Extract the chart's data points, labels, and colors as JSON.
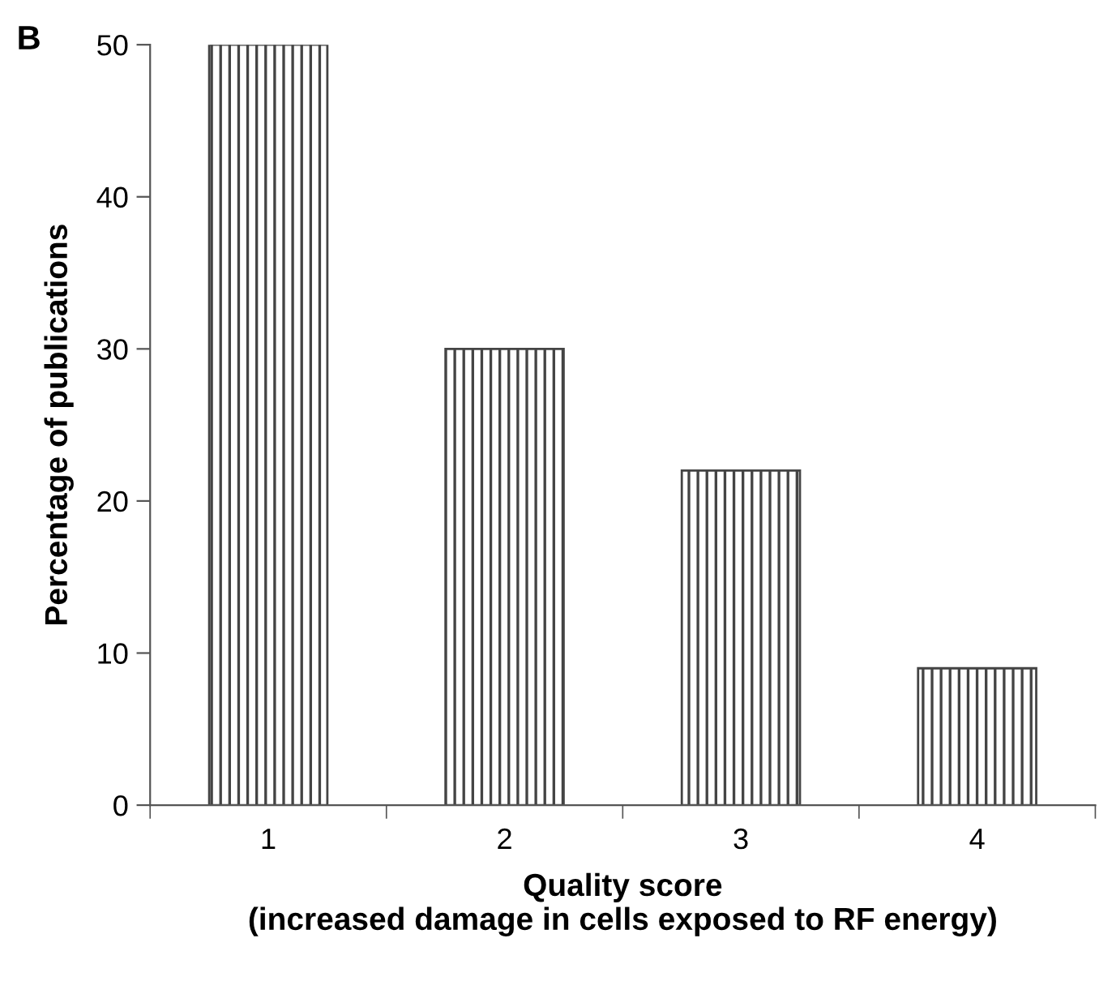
{
  "chart_data": {
    "type": "bar",
    "xlabel": "Quality score\n(increased damage in cells exposed to RF energy)",
    "ylabel": "Percentage of publications",
    "annotations": [
      "B"
    ],
    "categories": [
      "1",
      "2",
      "3",
      "4"
    ],
    "values": [
      50,
      30,
      22,
      9
    ],
    "color": "#444444",
    "ylim": [
      0,
      50
    ],
    "yticks": [
      0,
      10,
      20,
      30,
      40,
      50
    ],
    "grid": false,
    "legend": false
  }
}
